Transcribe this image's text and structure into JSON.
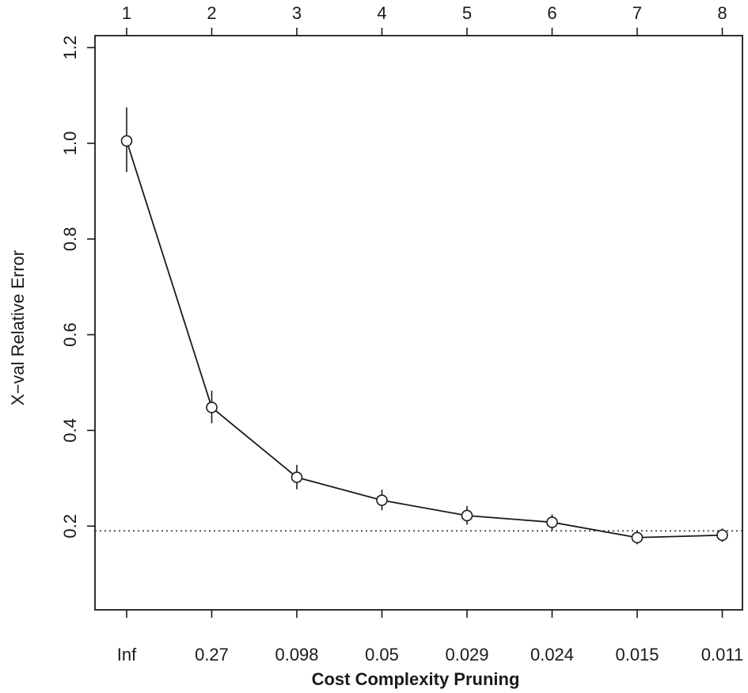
{
  "chart_data": {
    "type": "line",
    "xlabel": "Cost Complexity Pruning",
    "ylabel": "X−val Relative Error",
    "top_axis_ticks": [
      "1",
      "2",
      "3",
      "4",
      "5",
      "6",
      "7",
      "8"
    ],
    "bottom_axis_ticks": [
      "Inf",
      "0.27",
      "0.098",
      "0.05",
      "0.029",
      "0.024",
      "0.015",
      "0.011"
    ],
    "y_ticks": [
      "0.2",
      "0.4",
      "0.6",
      "0.8",
      "1.0",
      "1.2"
    ],
    "ylim": [
      0.025,
      1.225
    ],
    "x": [
      1,
      2,
      3,
      4,
      5,
      6,
      7,
      8
    ],
    "series": [
      {
        "values": [
          1.005,
          0.448,
          0.302,
          0.254,
          0.222,
          0.208,
          0.176,
          0.181
        ],
        "error_low": [
          0.94,
          0.415,
          0.277,
          0.233,
          0.203,
          0.191,
          0.162,
          0.167
        ],
        "error_high": [
          1.075,
          0.483,
          0.328,
          0.276,
          0.242,
          0.224,
          0.19,
          0.195
        ]
      }
    ],
    "reference_line": 0.19,
    "grid": false,
    "line_color": "#1a1a1a",
    "reference_line_color": "#333333"
  }
}
